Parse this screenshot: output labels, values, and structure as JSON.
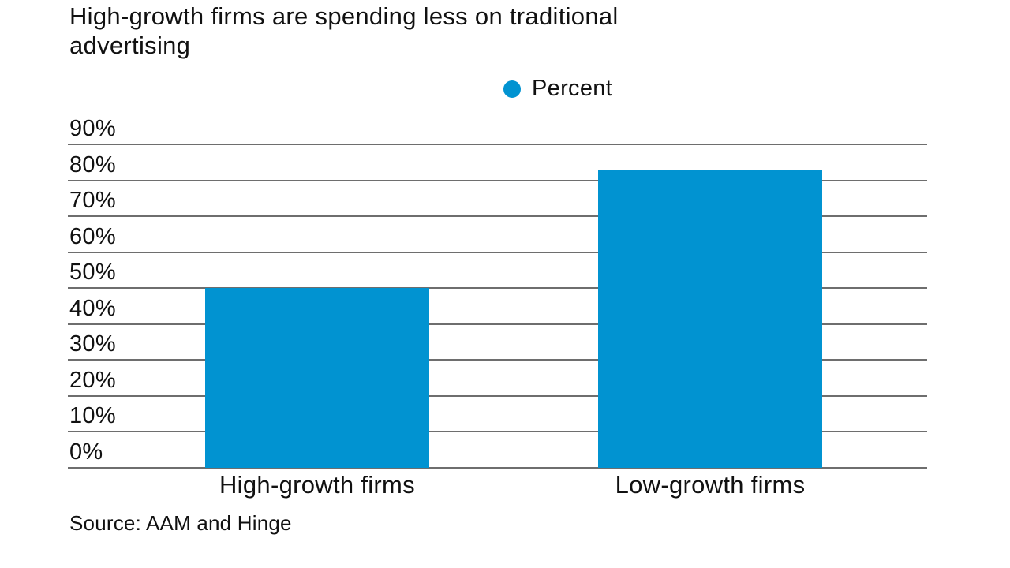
{
  "page": {
    "background": "#ffffff"
  },
  "title": {
    "line1": "High-growth firms are spending less on traditional",
    "line2": "advertising"
  },
  "legend": {
    "label": "Percent"
  },
  "source": "Source: AAM and Hinge",
  "colors": {
    "bar": "#0193d1",
    "gridline": "#6e6e6e",
    "text": "#111111"
  },
  "y_axis": {
    "ticks": [
      {
        "value": 90,
        "label": "90%"
      },
      {
        "value": 80,
        "label": "80%"
      },
      {
        "value": 70,
        "label": "70%"
      },
      {
        "value": 60,
        "label": "60%"
      },
      {
        "value": 50,
        "label": "50%"
      },
      {
        "value": 40,
        "label": "40%"
      },
      {
        "value": 30,
        "label": "30%"
      },
      {
        "value": 20,
        "label": "20%"
      },
      {
        "value": 10,
        "label": "10%"
      },
      {
        "value": 0,
        "label": "0%"
      }
    ]
  },
  "chart_data": {
    "type": "bar",
    "title": "High-growth firms are spending less on traditional advertising",
    "categories": [
      "High-growth firms",
      "Low-growth firms"
    ],
    "series": [
      {
        "name": "Percent",
        "values": [
          50,
          83
        ]
      }
    ],
    "xlabel": "",
    "ylabel": "Percent",
    "ylim": [
      0,
      90
    ],
    "ytick_step": 10,
    "ytick_format": "{value}%",
    "grid": true,
    "legend_position": "top-center",
    "bar_color": "#0193d1",
    "source": "Source: AAM and Hinge"
  }
}
